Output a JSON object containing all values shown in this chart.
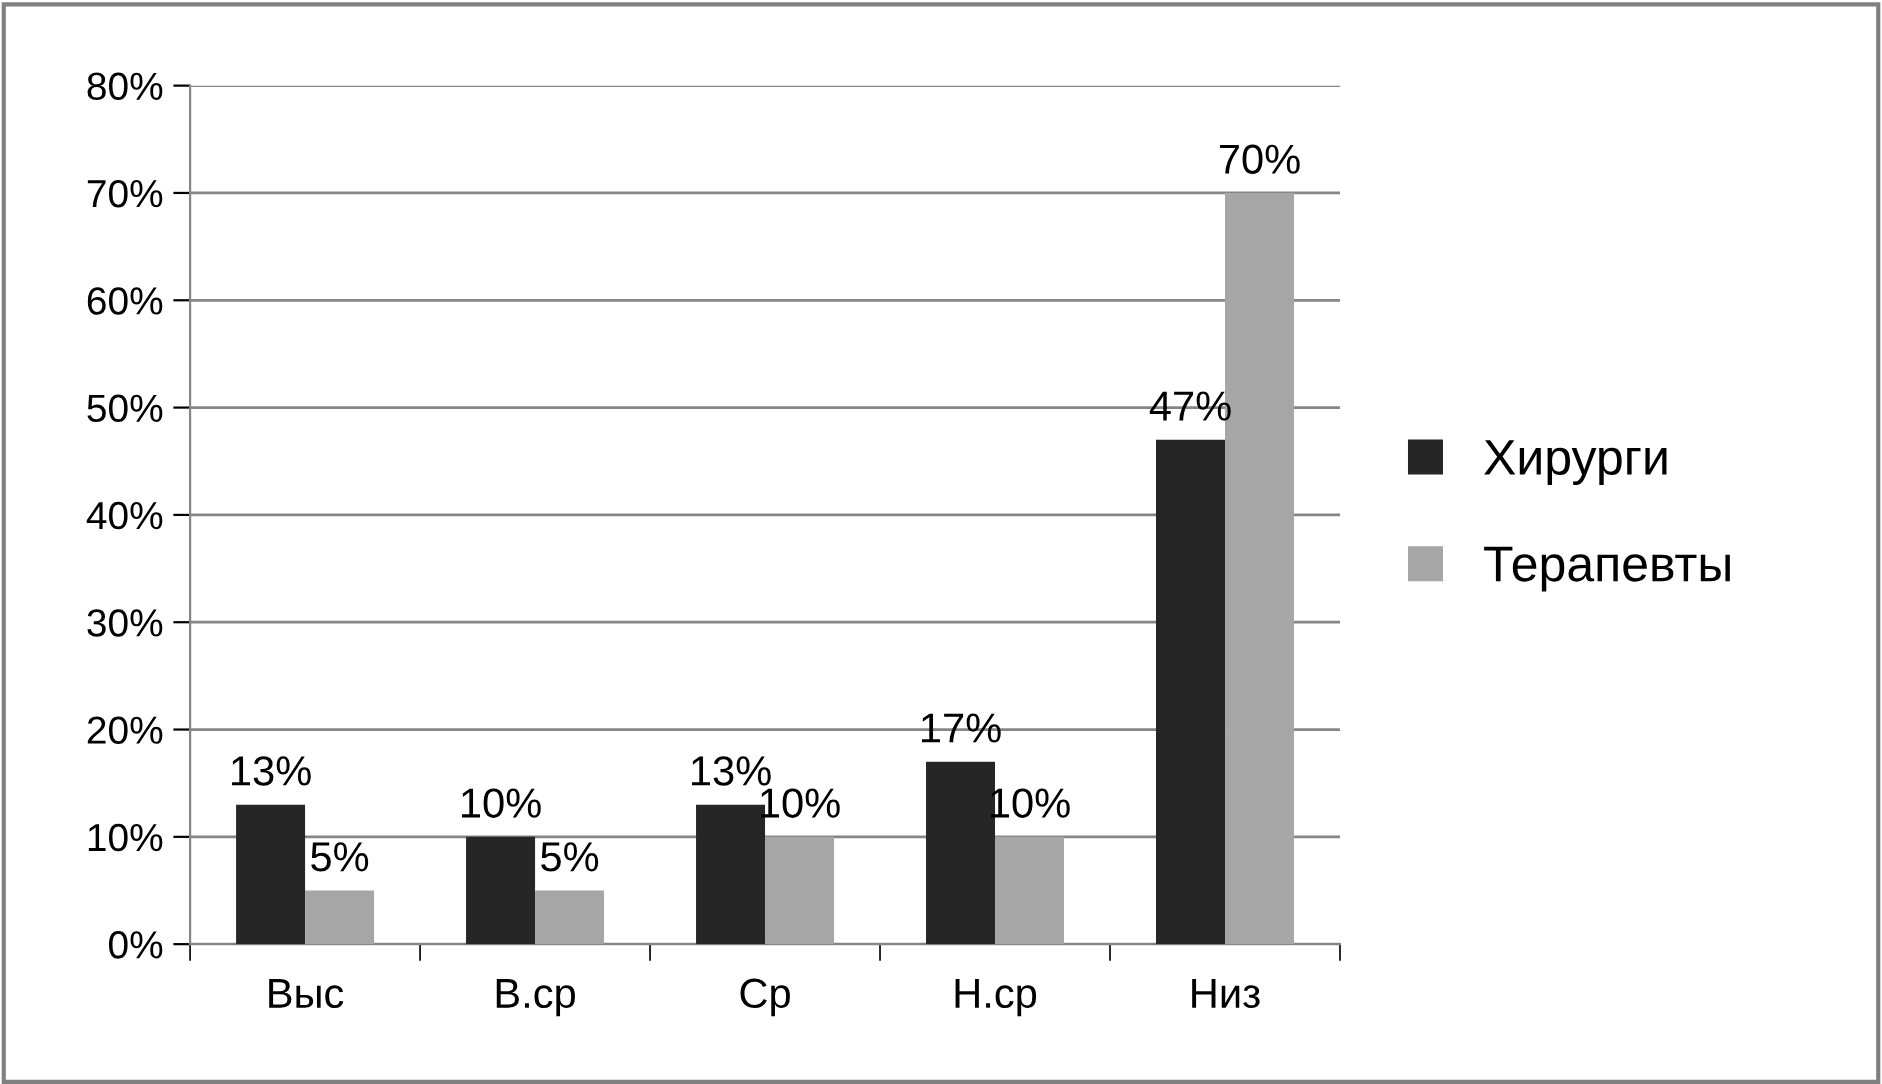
{
  "chart_data": {
    "type": "bar",
    "categories": [
      "Выс",
      "В.ср",
      "Ср",
      "Н.ср",
      "Низ"
    ],
    "series": [
      {
        "name": "Хирурги",
        "color": "#262626",
        "values": [
          13,
          10,
          13,
          17,
          47
        ],
        "value_labels": [
          "13%",
          "10%",
          "13%",
          "17%",
          "47%"
        ]
      },
      {
        "name": "Терапевты",
        "color": "#a6a6a6",
        "values": [
          5,
          5,
          10,
          10,
          70
        ],
        "value_labels": [
          "5%",
          "5%",
          "10%",
          "10%",
          "70%"
        ]
      }
    ],
    "ylim": [
      0,
      80
    ],
    "yticks": [
      {
        "value": 0,
        "label": "0%"
      },
      {
        "value": 10,
        "label": "10%"
      },
      {
        "value": 20,
        "label": "20%"
      },
      {
        "value": 30,
        "label": "30%"
      },
      {
        "value": 40,
        "label": "40%"
      },
      {
        "value": 50,
        "label": "50%"
      },
      {
        "value": 60,
        "label": "60%"
      },
      {
        "value": 70,
        "label": "70%"
      },
      {
        "value": 80,
        "label": "80%"
      }
    ],
    "grid": "y",
    "legend": "right"
  }
}
